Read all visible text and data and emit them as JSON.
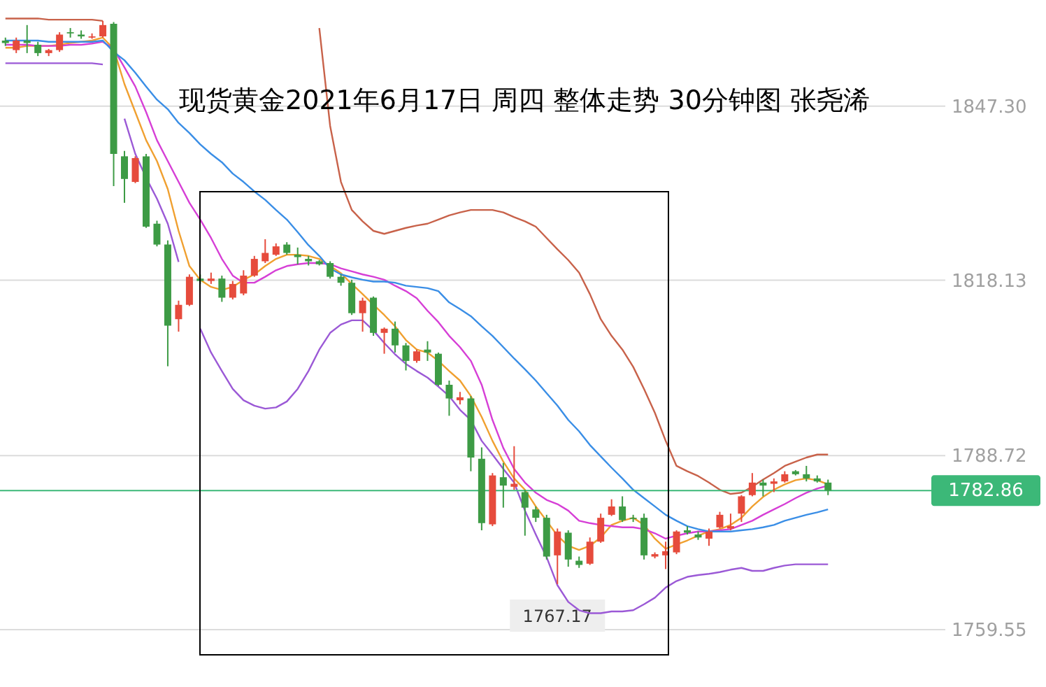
{
  "chart_data": {
    "type": "candlestick",
    "title": "现货黄金2021年6月17日 周四 整体走势  30分钟图 张尧浠",
    "categories": [
      null,
      null,
      null,
      null,
      null,
      null,
      null,
      null,
      null,
      null,
      null,
      null,
      null,
      null,
      null,
      null,
      null,
      null,
      null,
      null,
      null,
      null,
      null,
      null,
      null,
      null,
      null,
      null,
      null,
      null,
      null,
      null,
      null,
      null,
      null,
      null,
      null,
      null,
      null,
      null,
      null,
      null,
      null,
      null,
      null,
      null,
      null,
      null,
      null,
      null,
      null,
      null,
      null,
      null,
      null,
      null,
      null,
      null,
      null,
      null,
      null,
      null,
      null,
      null,
      null,
      null,
      null,
      null,
      null,
      null,
      null,
      null,
      null,
      null,
      null,
      null,
      null
    ],
    "ohlc": [
      [
        1858.3,
        1858.8,
        1857.4,
        1857.9
      ],
      [
        1856.7,
        1858.8,
        1856.2,
        1858.3
      ],
      [
        1858.3,
        1860.9,
        1856.2,
        1857.9
      ],
      [
        1857.6,
        1858.1,
        1855.7,
        1856.2
      ],
      [
        1856.2,
        1856.9,
        1855.7,
        1856.7
      ],
      [
        1856.7,
        1859.7,
        1856.4,
        1859.3
      ],
      [
        1859.7,
        1860.4,
        1858.8,
        1859.5
      ],
      [
        1859.3,
        1860.0,
        1858.6,
        1859.0
      ],
      [
        1858.8,
        1859.5,
        1858.6,
        1859.0
      ],
      [
        1859.0,
        1861.6,
        1858.8,
        1860.9
      ],
      [
        1861.1,
        1861.4,
        1833.9,
        1839.3
      ],
      [
        1838.9,
        1839.8,
        1831.1,
        1835.1
      ],
      [
        1834.6,
        1838.9,
        1834.4,
        1838.6
      ],
      [
        1838.9,
        1839.3,
        1826.9,
        1827.1
      ],
      [
        1827.6,
        1828.1,
        1823.8,
        1824.1
      ],
      [
        1824.1,
        1824.8,
        1803.7,
        1810.5
      ],
      [
        1811.6,
        1814.7,
        1809.5,
        1814.0
      ],
      [
        1814.0,
        1819.1,
        1813.8,
        1818.7
      ],
      [
        1818.4,
        1819.1,
        1817.5,
        1818.0
      ],
      [
        1818.0,
        1819.4,
        1817.5,
        1818.4
      ],
      [
        1818.4,
        1818.9,
        1814.5,
        1815.2
      ],
      [
        1815.2,
        1818.0,
        1814.9,
        1817.5
      ],
      [
        1815.9,
        1819.8,
        1815.6,
        1818.9
      ],
      [
        1818.9,
        1822.2,
        1818.7,
        1821.7
      ],
      [
        1821.3,
        1825.0,
        1821.0,
        1822.7
      ],
      [
        1822.4,
        1824.3,
        1822.2,
        1823.8
      ],
      [
        1824.1,
        1824.5,
        1822.4,
        1822.7
      ],
      [
        1822.4,
        1823.6,
        1820.8,
        1822.0
      ],
      [
        1821.7,
        1822.2,
        1820.6,
        1821.3
      ],
      [
        1821.3,
        1821.5,
        1820.6,
        1820.8
      ],
      [
        1821.0,
        1821.3,
        1818.4,
        1818.7
      ],
      [
        1818.7,
        1819.1,
        1817.2,
        1817.7
      ],
      [
        1817.7,
        1818.2,
        1812.3,
        1812.6
      ],
      [
        1812.6,
        1815.2,
        1809.5,
        1814.7
      ],
      [
        1815.2,
        1815.4,
        1808.8,
        1809.3
      ],
      [
        1809.3,
        1810.2,
        1805.8,
        1810.0
      ],
      [
        1810.0,
        1811.2,
        1806.0,
        1807.2
      ],
      [
        1807.2,
        1807.6,
        1803.0,
        1804.6
      ],
      [
        1804.6,
        1806.5,
        1804.3,
        1806.2
      ],
      [
        1806.5,
        1807.9,
        1804.6,
        1806.0
      ],
      [
        1805.8,
        1806.0,
        1800.4,
        1800.6
      ],
      [
        1800.6,
        1801.3,
        1795.4,
        1798.3
      ],
      [
        1798.0,
        1799.4,
        1797.3,
        1798.5
      ],
      [
        1798.3,
        1798.7,
        1786.1,
        1788.4
      ],
      [
        1788.2,
        1790.1,
        1776.2,
        1777.4
      ],
      [
        1777.2,
        1785.8,
        1776.9,
        1785.4
      ],
      [
        1785.1,
        1787.5,
        1780.0,
        1783.7
      ],
      [
        1783.5,
        1790.3,
        1783.0,
        1784.0
      ],
      [
        1782.6,
        1783.0,
        1775.3,
        1780.0
      ],
      [
        1779.7,
        1780.2,
        1777.6,
        1778.3
      ],
      [
        1778.3,
        1778.8,
        1771.3,
        1771.8
      ],
      [
        1772.0,
        1776.5,
        1767.17,
        1776.0
      ],
      [
        1775.8,
        1776.2,
        1770.1,
        1771.3
      ],
      [
        1771.1,
        1771.8,
        1769.9,
        1770.4
      ],
      [
        1770.6,
        1775.0,
        1770.4,
        1774.3
      ],
      [
        1774.3,
        1779.0,
        1774.1,
        1778.3
      ],
      [
        1778.8,
        1781.4,
        1778.6,
        1780.2
      ],
      [
        1780.2,
        1781.9,
        1777.6,
        1777.9
      ],
      [
        1778.3,
        1778.8,
        1777.6,
        1778.1
      ],
      [
        1778.3,
        1779.0,
        1771.3,
        1772.0
      ],
      [
        1771.8,
        1772.5,
        1771.5,
        1772.2
      ],
      [
        1772.0,
        1774.3,
        1769.7,
        1772.7
      ],
      [
        1772.5,
        1776.2,
        1772.2,
        1776.0
      ],
      [
        1776.2,
        1776.9,
        1775.5,
        1775.8
      ],
      [
        1775.5,
        1776.0,
        1774.6,
        1775.0
      ],
      [
        1774.8,
        1776.5,
        1773.6,
        1776.0
      ],
      [
        1776.7,
        1779.3,
        1776.5,
        1778.8
      ],
      [
        1776.5,
        1779.0,
        1776.2,
        1776.9
      ],
      [
        1779.0,
        1782.1,
        1777.6,
        1781.9
      ],
      [
        1782.1,
        1785.8,
        1781.9,
        1784.2
      ],
      [
        1784.2,
        1784.7,
        1781.9,
        1783.7
      ],
      [
        1784.0,
        1784.9,
        1782.6,
        1784.4
      ],
      [
        1784.4,
        1786.1,
        1784.2,
        1785.6
      ],
      [
        1786.1,
        1786.3,
        1785.4,
        1785.6
      ],
      [
        1785.6,
        1787.0,
        1784.4,
        1784.9
      ],
      [
        1784.9,
        1785.4,
        1784.2,
        1784.4
      ],
      [
        1784.2,
        1784.7,
        1782.1,
        1782.86
      ]
    ],
    "colors": [
      "#3d9b45",
      "#e64b3c",
      "#3d9b45",
      "#3d9b45",
      "#e64b3c",
      "#e64b3c",
      "#3d9b45",
      "#3d9b45",
      "#e64b3c",
      "#e64b3c",
      "#3d9b45",
      "#3d9b45",
      "#e64b3c",
      "#3d9b45",
      "#3d9b45",
      "#3d9b45",
      "#e64b3c",
      "#e64b3c",
      "#3d9b45",
      "#e64b3c",
      "#3d9b45",
      "#e64b3c",
      "#e64b3c",
      "#e64b3c",
      "#e64b3c",
      "#e64b3c",
      "#3d9b45",
      "#3d9b45",
      "#3d9b45",
      "#3d9b45",
      "#3d9b45",
      "#3d9b45",
      "#3d9b45",
      "#e64b3c",
      "#3d9b45",
      "#e64b3c",
      "#3d9b45",
      "#3d9b45",
      "#e64b3c",
      "#3d9b45",
      "#3d9b45",
      "#3d9b45",
      "#e64b3c",
      "#3d9b45",
      "#3d9b45",
      "#e64b3c",
      "#3d9b45",
      "#e64b3c",
      "#3d9b45",
      "#3d9b45",
      "#3d9b45",
      "#e64b3c",
      "#3d9b45",
      "#3d9b45",
      "#e64b3c",
      "#e64b3c",
      "#e64b3c",
      "#3d9b45",
      "#3d9b45",
      "#3d9b45",
      "#e64b3c",
      "#e64b3c",
      "#e64b3c",
      "#3d9b45",
      "#3d9b45",
      "#e64b3c",
      "#e64b3c",
      "#e64b3c",
      "#e64b3c",
      "#e64b3c",
      "#3d9b45",
      "#e64b3c",
      "#e64b3c",
      "#3d9b45",
      "#3d9b45",
      "#3d9b45",
      "#3d9b45"
    ],
    "series": [
      {
        "type": "line",
        "color": "#f0a030",
        "values": [
          1857.1,
          1857.1,
          1857.4,
          1857.4,
          1857.4,
          1857.6,
          1857.9,
          1858.1,
          1858.3,
          1858.8,
          1856.9,
          1851.0,
          1846.3,
          1841.6,
          1838.1,
          1833.4,
          1826.4,
          1820.5,
          1818.2,
          1817.0,
          1816.5,
          1817.0,
          1818.2,
          1819.1,
          1820.5,
          1821.7,
          1822.4,
          1822.4,
          1822.2,
          1821.7,
          1820.5,
          1819.3,
          1817.5,
          1815.8,
          1814.0,
          1812.3,
          1810.4,
          1808.1,
          1806.5,
          1806.0,
          1804.6,
          1802.9,
          1801.3,
          1798.7,
          1795.2,
          1791.2,
          1787.7,
          1784.9,
          1783.0,
          1780.2,
          1777.8,
          1775.3,
          1773.6,
          1772.9,
          1773.6,
          1775.0,
          1777.1,
          1777.8,
          1778.3,
          1777.1,
          1774.8,
          1773.1,
          1773.8,
          1774.5,
          1775.3,
          1776.0,
          1776.4,
          1777.1,
          1778.3,
          1780.2,
          1781.8,
          1783.0,
          1783.9,
          1784.6,
          1784.9,
          1784.6,
          1783.9
        ]
      },
      {
        "type": "line",
        "color": "#d63fd6",
        "values": [
          1857.6,
          1857.6,
          1857.6,
          1857.4,
          1857.4,
          1857.4,
          1857.6,
          1857.6,
          1857.8,
          1858.1,
          1856.9,
          1853.8,
          1850.6,
          1846.3,
          1841.6,
          1838.1,
          1834.6,
          1831.1,
          1828.3,
          1825.2,
          1821.7,
          1818.9,
          1817.7,
          1817.7,
          1818.7,
          1819.8,
          1820.5,
          1820.8,
          1821.0,
          1821.0,
          1820.8,
          1820.1,
          1819.6,
          1819.1,
          1818.7,
          1818.2,
          1817.2,
          1816.3,
          1815.1,
          1813.0,
          1811.1,
          1808.8,
          1806.9,
          1804.6,
          1800.6,
          1794.7,
          1790.0,
          1786.5,
          1784.2,
          1782.5,
          1781.3,
          1780.6,
          1779.5,
          1777.8,
          1777.4,
          1777.1,
          1776.9,
          1776.7,
          1776.7,
          1776.4,
          1775.7,
          1774.8,
          1775.3,
          1775.7,
          1776.0,
          1776.0,
          1776.2,
          1776.4,
          1777.1,
          1777.8,
          1778.8,
          1779.7,
          1780.6,
          1781.6,
          1782.5,
          1783.2,
          1783.7
        ]
      },
      {
        "type": "line",
        "color": "#3a8ee6",
        "values": [
          1858.3,
          1858.3,
          1858.3,
          1858.3,
          1858.1,
          1858.1,
          1858.1,
          1858.1,
          1858.1,
          1858.3,
          1856.4,
          1855.0,
          1852.9,
          1850.6,
          1848.4,
          1846.8,
          1844.5,
          1842.8,
          1840.9,
          1839.3,
          1837.9,
          1836.0,
          1834.6,
          1833.0,
          1831.6,
          1829.9,
          1828.3,
          1826.2,
          1824.0,
          1822.2,
          1820.1,
          1819.1,
          1818.6,
          1818.2,
          1817.9,
          1817.9,
          1817.7,
          1817.2,
          1817.0,
          1816.8,
          1816.3,
          1814.4,
          1813.3,
          1812.1,
          1810.4,
          1808.8,
          1806.9,
          1805.0,
          1803.2,
          1801.3,
          1799.2,
          1797.1,
          1794.7,
          1792.8,
          1790.5,
          1788.6,
          1786.7,
          1784.9,
          1783.0,
          1781.6,
          1780.2,
          1778.8,
          1777.8,
          1776.9,
          1776.4,
          1776.0,
          1776.0,
          1776.0,
          1776.2,
          1776.4,
          1776.7,
          1777.1,
          1777.8,
          1778.3,
          1778.8,
          1779.2,
          1779.7
        ]
      },
      {
        "type": "line",
        "color": "#c8624a",
        "values": [
          1862.0,
          1862.0,
          1862.0,
          1862.0,
          1861.8,
          1861.8,
          1861.8,
          1861.8,
          1861.8,
          1861.6,
          null,
          null,
          null,
          null,
          null,
          null,
          null,
          null,
          null,
          null,
          null,
          null,
          null,
          null,
          null,
          null,
          null,
          null,
          null,
          1860.4,
          1844.0,
          1834.6,
          1829.9,
          1828.0,
          1826.4,
          1825.9,
          1826.4,
          1826.9,
          1827.3,
          1827.6,
          1828.3,
          1829.0,
          1829.5,
          1829.9,
          1829.9,
          1829.9,
          1829.5,
          1828.7,
          1828.0,
          1827.1,
          1825.2,
          1823.3,
          1821.5,
          1819.4,
          1815.8,
          1811.6,
          1808.8,
          1806.5,
          1803.6,
          1799.9,
          1795.9,
          1791.2,
          1787.0,
          1786.1,
          1785.3,
          1784.2,
          1783.0,
          1782.3,
          1782.5,
          1783.5,
          1784.7,
          1785.8,
          1787.0,
          1787.7,
          1788.4,
          1788.9,
          1788.9
        ]
      },
      {
        "type": "line",
        "color": "#9b59d6",
        "values": [
          1854.5,
          1854.5,
          1854.5,
          1854.5,
          1854.5,
          1854.5,
          1854.5,
          1854.5,
          1854.5,
          1854.3,
          null,
          1845.2,
          1839.3,
          1835.3,
          1831.8,
          1827.6,
          1821.2,
          null,
          1810.0,
          1806.0,
          1802.9,
          1799.9,
          1798.0,
          1797.1,
          1796.6,
          1796.8,
          1797.8,
          1799.9,
          1802.9,
          1806.5,
          1809.3,
          1810.7,
          1811.4,
          1811.4,
          1809.7,
          1807.6,
          1805.7,
          1804.1,
          1802.9,
          1801.8,
          1800.3,
          1798.7,
          1796.4,
          1794.7,
          1791.2,
          1788.9,
          1786.5,
          1784.2,
          1779.5,
          1775.5,
          1771.7,
          1767.0,
          1764.2,
          1762.8,
          1762.3,
          1762.3,
          1762.6,
          1762.6,
          1762.8,
          1763.8,
          1764.9,
          1766.6,
          1767.7,
          1768.4,
          1768.7,
          1768.9,
          1769.2,
          1769.6,
          1769.9,
          1769.4,
          1769.4,
          1769.9,
          1770.3,
          1770.5,
          1770.5,
          1770.5,
          1770.5
        ]
      }
    ],
    "ylim": [
      1759.55,
      1865.1
    ],
    "yticks": [
      {
        "value": 1847.3,
        "label": "1847.30"
      },
      {
        "value": 1818.13,
        "label": "1818.13"
      },
      {
        "value": 1788.72,
        "label": "1788.72"
      },
      {
        "value": 1759.55,
        "label": "1759.55"
      }
    ],
    "grid": "y",
    "ref_lines": [
      {
        "axis": "y",
        "value": 1782.86,
        "label": "1782.86",
        "color": "#3cb878"
      }
    ],
    "annotations": [
      {
        "text": "1767.17",
        "y": 1767.17
      }
    ]
  }
}
